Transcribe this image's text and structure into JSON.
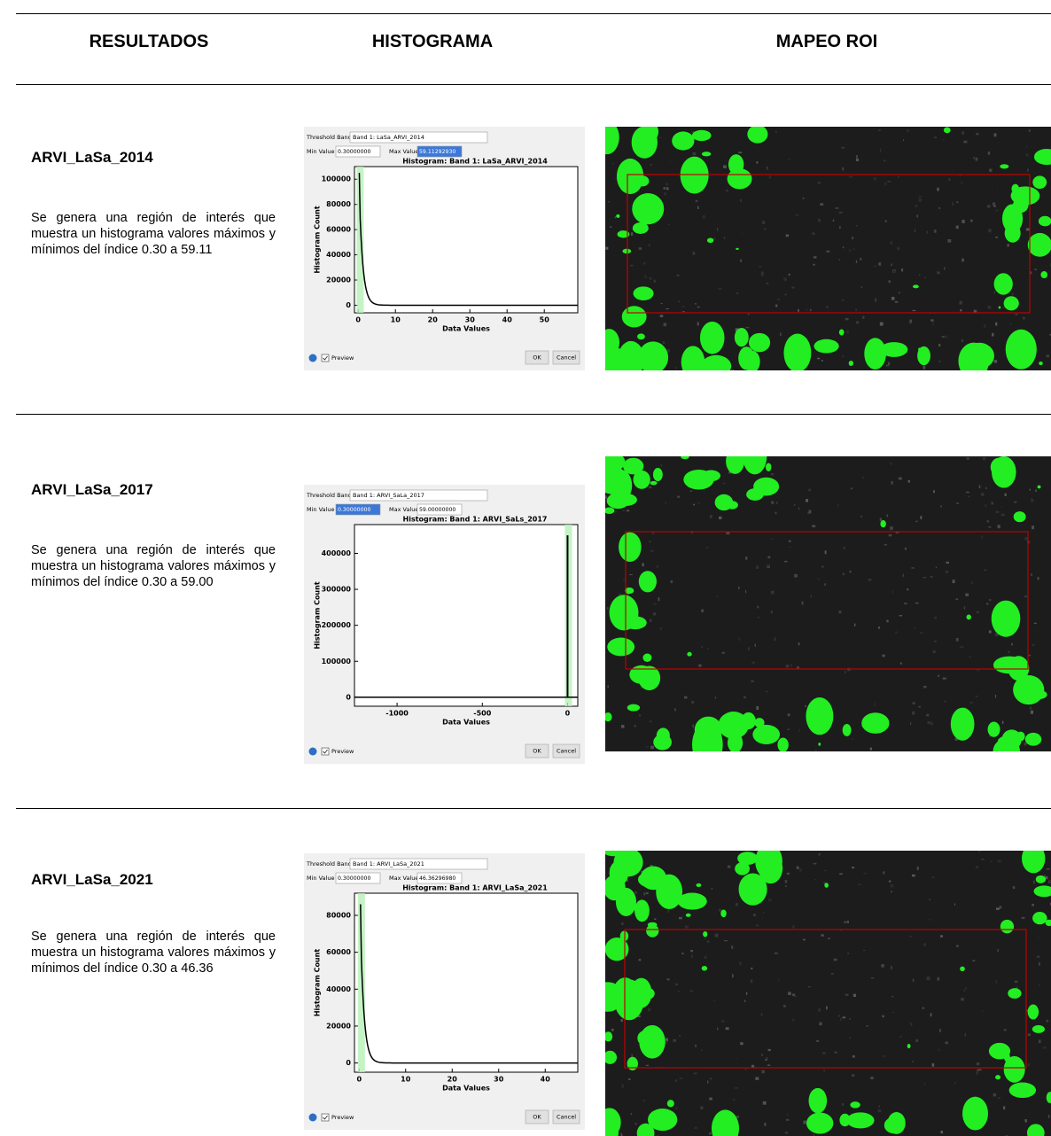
{
  "header": {
    "columns": [
      "RESULTADOS",
      "HISTOGRAMA",
      "MAPEO ROI"
    ]
  },
  "rows": [
    {
      "name": "ARVI_LaSa_2014",
      "description": "Se genera una región de interés que muestra un histograma valores máximos y mínimos del índice 0.30 a 59.11",
      "dialog": {
        "threshold_label": "Threshold Band",
        "band": "Band 1: LaSa_ARVI_2014",
        "min_label": "Min Value",
        "min": "0.30000000",
        "max_label": "Max Value",
        "max": "59.11292930",
        "chart_title": "Histogram: Band 1: LaSa_ARVI_2014",
        "y_label": "Histogram Count",
        "x_label": "Data Values",
        "preview": "Preview",
        "ok": "OK",
        "cancel": "Cancel",
        "shape": "decay",
        "peak": [
          0.3,
          105000
        ],
        "xlim": [
          -1,
          59
        ],
        "ylim": [
          -6000,
          110000
        ],
        "xticks": [
          0,
          10,
          20,
          30,
          40,
          50
        ],
        "yticks": [
          0,
          20000,
          40000,
          60000,
          80000,
          100000
        ]
      }
    },
    {
      "name": "ARVI_LaSa_2017",
      "description": "Se genera una región de interés que muestra un histograma valores máximos y mínimos del índice 0.30 a 59.00",
      "dialog": {
        "threshold_label": "Threshold Band",
        "band": "Band 1: ARVI_SaLa_2017",
        "min_label": "Min Value",
        "min": "0.30000000",
        "max_label": "Max Value",
        "max": "59.00000000",
        "chart_title": "Histogram: Band 1: ARVI_SaLs_2017",
        "y_label": "Histogram Count",
        "x_label": "Data Values",
        "preview": "Preview",
        "ok": "OK",
        "cancel": "Cancel",
        "shape": "spike",
        "peak": [
          0,
          450000
        ],
        "xlim": [
          -1250,
          60
        ],
        "ylim": [
          -25000,
          480000
        ],
        "xticks": [
          -1000,
          -500,
          0
        ],
        "yticks": [
          0,
          100000,
          200000,
          300000,
          400000
        ]
      }
    },
    {
      "name": "ARVI_LaSa_2021",
      "description": "Se genera una región de interés que muestra un histograma valores máximos y mínimos del índice 0.30 a 46.36",
      "dialog": {
        "threshold_label": "Threshold Band",
        "band": "Band 1: ARVI_LaSa_2021",
        "min_label": "Min Value",
        "min": "0.30000000",
        "max_label": "Max Value",
        "max": "46.36296980",
        "chart_title": "Histogram: Band 1: ARVI_LaSa_2021",
        "y_label": "Histogram Count",
        "x_label": "Data Values",
        "preview": "Preview",
        "ok": "OK",
        "cancel": "Cancel",
        "shape": "decay",
        "peak": [
          0.3,
          86000
        ],
        "xlim": [
          -1,
          47
        ],
        "ylim": [
          -5000,
          92000
        ],
        "xticks": [
          0,
          10,
          20,
          30,
          40
        ],
        "yticks": [
          0,
          20000,
          40000,
          60000,
          80000
        ]
      }
    }
  ]
}
